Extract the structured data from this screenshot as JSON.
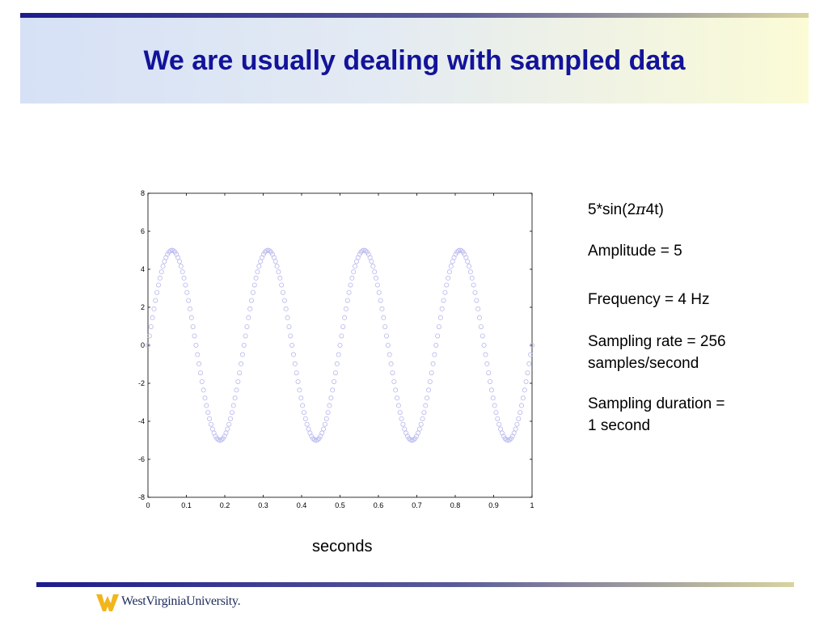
{
  "slide": {
    "title": "We are usually dealing with sampled data",
    "x_axis_unit": "seconds",
    "notes": {
      "formula_prefix": "5*sin(2",
      "formula_symbol": "π",
      "formula_suffix": "4t)",
      "amplitude": "Amplitude = 5",
      "frequency": "Frequency = 4 Hz",
      "sampling_rate_line1": "Sampling rate = 256",
      "sampling_rate_line2": "samples/second",
      "duration_line1": "Sampling duration =",
      "duration_line2": "1 second"
    },
    "footer": {
      "logo_text": "WestVirginiaUniversity.",
      "logo_color": "#f2b51c",
      "rule_color": "#1c1c8c"
    }
  },
  "colors": {
    "title": "#13139a",
    "marker": "#b7b7ee"
  },
  "chart_data": {
    "type": "scatter",
    "marker": "circle-open",
    "function": {
      "amplitude": 5,
      "frequency": 4,
      "sample_rate": 256,
      "duration": 1
    },
    "xlim": [
      0,
      1
    ],
    "ylim": [
      -8,
      8
    ],
    "xticks": [
      "0",
      "0.1",
      "0.2",
      "0.3",
      "0.4",
      "0.5",
      "0.6",
      "0.7",
      "0.8",
      "0.9",
      "1"
    ],
    "yticks": [
      "8",
      "6",
      "4",
      "2",
      "0",
      "-2",
      "-4",
      "-6",
      "-8"
    ],
    "grid": false
  }
}
